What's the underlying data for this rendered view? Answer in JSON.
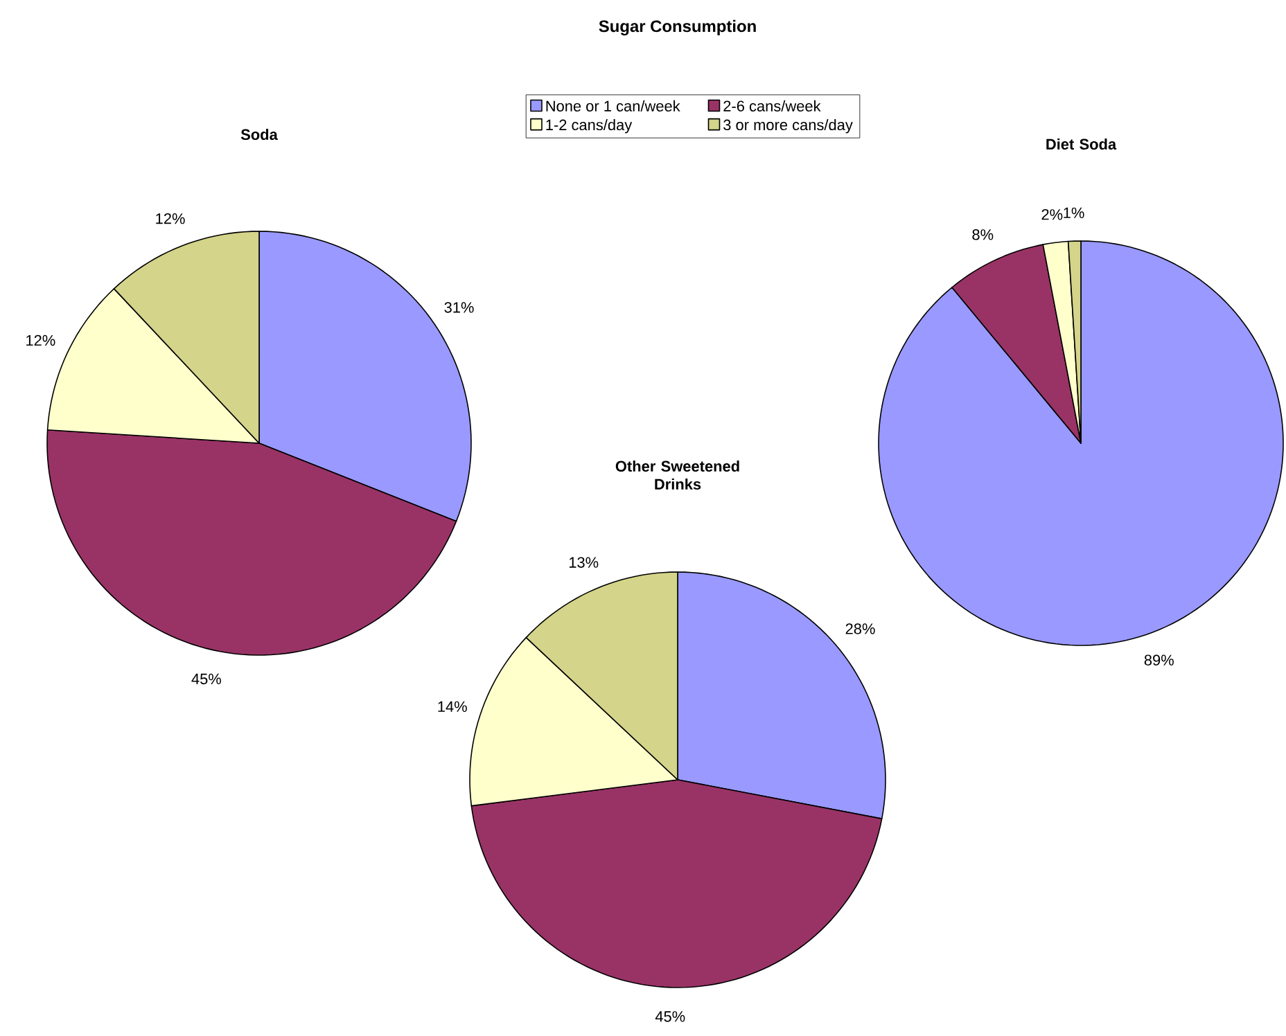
{
  "chart_data": [
    {
      "type": "pie",
      "title": "Soda",
      "annotations": [
        "Sugar Consumption"
      ],
      "legend": "top",
      "categories": [
        "None or 1 can/week",
        "2-6 cans/week",
        "1-2 cans/day",
        "3 or more cans/day"
      ],
      "values": [
        31,
        45,
        12,
        12
      ],
      "value_labels": [
        "31%",
        "45%",
        "12%",
        "12%"
      ],
      "colors": [
        "#9999ff",
        "#993366",
        "#ffffcc",
        "#d4d48a"
      ]
    },
    {
      "type": "pie",
      "title": "Other Sweetened Drinks",
      "values": [
        28,
        45,
        14,
        13
      ],
      "value_labels": [
        "28%",
        "45%",
        "14%",
        "13%"
      ],
      "colors": [
        "#9999ff",
        "#993366",
        "#ffffcc",
        "#d4d48a"
      ]
    },
    {
      "type": "pie",
      "title": "Diet Soda",
      "values": [
        89,
        8,
        2,
        1
      ],
      "value_labels": [
        "89%",
        "8%",
        "2%",
        "1%"
      ],
      "colors": [
        "#9999ff",
        "#993366",
        "#ffffcc",
        "#d4d48a"
      ]
    }
  ]
}
